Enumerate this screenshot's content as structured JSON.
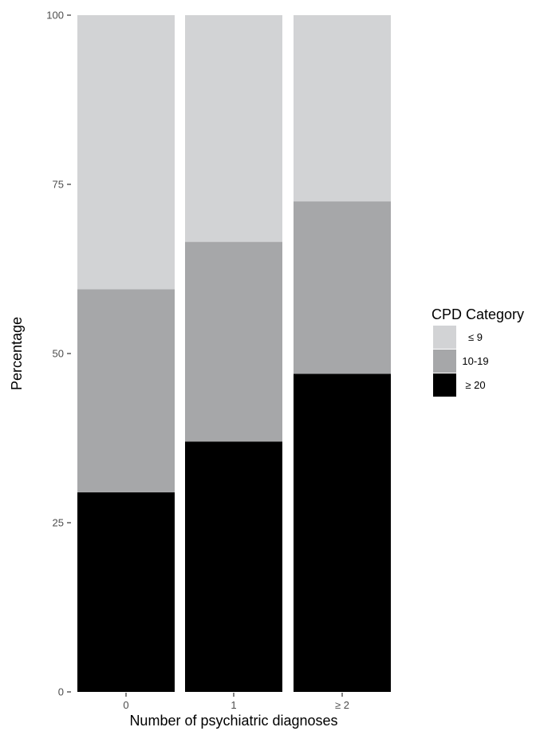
{
  "chart_data": {
    "type": "bar",
    "stacked": true,
    "categories": [
      "0",
      "1",
      "≥ 2"
    ],
    "series": [
      {
        "name": "≥ 20",
        "values": [
          29.5,
          37.0,
          47.0
        ],
        "color": "#000000"
      },
      {
        "name": "10-19",
        "values": [
          30.0,
          29.5,
          25.5
        ],
        "color": "#a6a7a9"
      },
      {
        "name": "≤ 9",
        "values": [
          40.5,
          33.5,
          27.5
        ],
        "color": "#d2d3d5"
      }
    ],
    "xlabel": "Number of psychiatric diagnoses",
    "ylabel": "Percentage",
    "ylim": [
      0,
      100
    ],
    "yticks": [
      "0",
      "25",
      "50",
      "75",
      "100"
    ],
    "legend": {
      "title": "CPD Category",
      "position": "right",
      "entries": [
        "≤ 9",
        "10-19",
        "≥ 20"
      ]
    },
    "grid": false
  }
}
